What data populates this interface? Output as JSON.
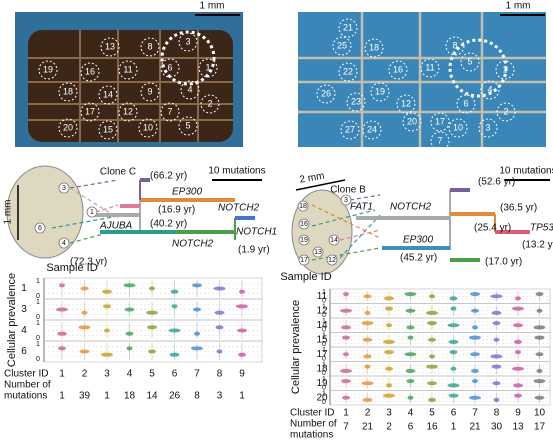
{
  "left": {
    "photo": {
      "scale": "1 mm",
      "samples": [
        "13",
        "8",
        "3",
        "19",
        "16",
        "11",
        "6",
        "1",
        "18",
        "14",
        "9",
        "4",
        "2",
        "17",
        "12",
        "7",
        "20",
        "15",
        "10",
        "5"
      ]
    },
    "tree": {
      "section_scale": "1 mm",
      "clone": "Clone C",
      "scale": "10 mutations",
      "section_samples": [
        "3",
        "1",
        "6",
        "4"
      ],
      "labels": [
        "(66.2 yr)",
        "EP300",
        "(16.9 yr)",
        "NOTCH2",
        "AJUBA",
        "(40.2 yr)",
        "NOTCH1",
        "(72.3 yr)",
        "NOTCH2",
        "(1.9 yr)"
      ]
    },
    "prevalence": {
      "sample_id_title": "Sample ID",
      "y_label": "Cellular prevalence",
      "tick_labels": [
        "0",
        "1"
      ],
      "samples": [
        "1",
        "3",
        "4",
        "6"
      ],
      "cluster_label": "Cluster ID",
      "clusters": [
        1,
        2,
        3,
        4,
        5,
        6,
        7,
        8,
        9
      ],
      "mutations_label": [
        "Number of",
        "mutations"
      ],
      "mutations": [
        1,
        39,
        1,
        18,
        14,
        26,
        8,
        3,
        1
      ]
    }
  },
  "right": {
    "photo": {
      "scale": "1 mm",
      "samples": [
        "21",
        "25",
        "18",
        "8",
        "22",
        "16",
        "11",
        "5",
        "1",
        "26",
        "23",
        "19",
        "12",
        "6",
        "4",
        "2",
        "20",
        "17",
        "27",
        "24",
        "10",
        "3",
        "7"
      ]
    },
    "tree": {
      "section_scale": "2 mm",
      "clone": "Clone B",
      "scale": "10 mutations",
      "section_samples": [
        "18",
        "3",
        "16",
        "19",
        "14",
        "13",
        "17",
        "12"
      ],
      "labels": [
        "(52.6 yr)",
        "FAT1",
        "NOTCH2",
        "(36.5 yr)",
        "(25.4 yr)",
        "TP53",
        "EP300",
        "(13.2 yr)",
        "(45.2 yr)",
        "(17.0 yr)"
      ]
    },
    "prevalence": {
      "sample_id_title": "Sample ID",
      "y_label": "Cellular prevalence",
      "tick_labels": [
        "0",
        "1"
      ],
      "samples": [
        "11",
        "12",
        "14",
        "15",
        "17",
        "18",
        "19",
        "20"
      ],
      "cluster_label": "Cluster ID",
      "clusters": [
        1,
        2,
        3,
        4,
        5,
        6,
        7,
        8,
        9,
        10
      ],
      "mutations_label": [
        "Number of",
        "mutations"
      ],
      "mutations": [
        7,
        21,
        2,
        6,
        16,
        1,
        21,
        30,
        13,
        17
      ]
    }
  }
}
